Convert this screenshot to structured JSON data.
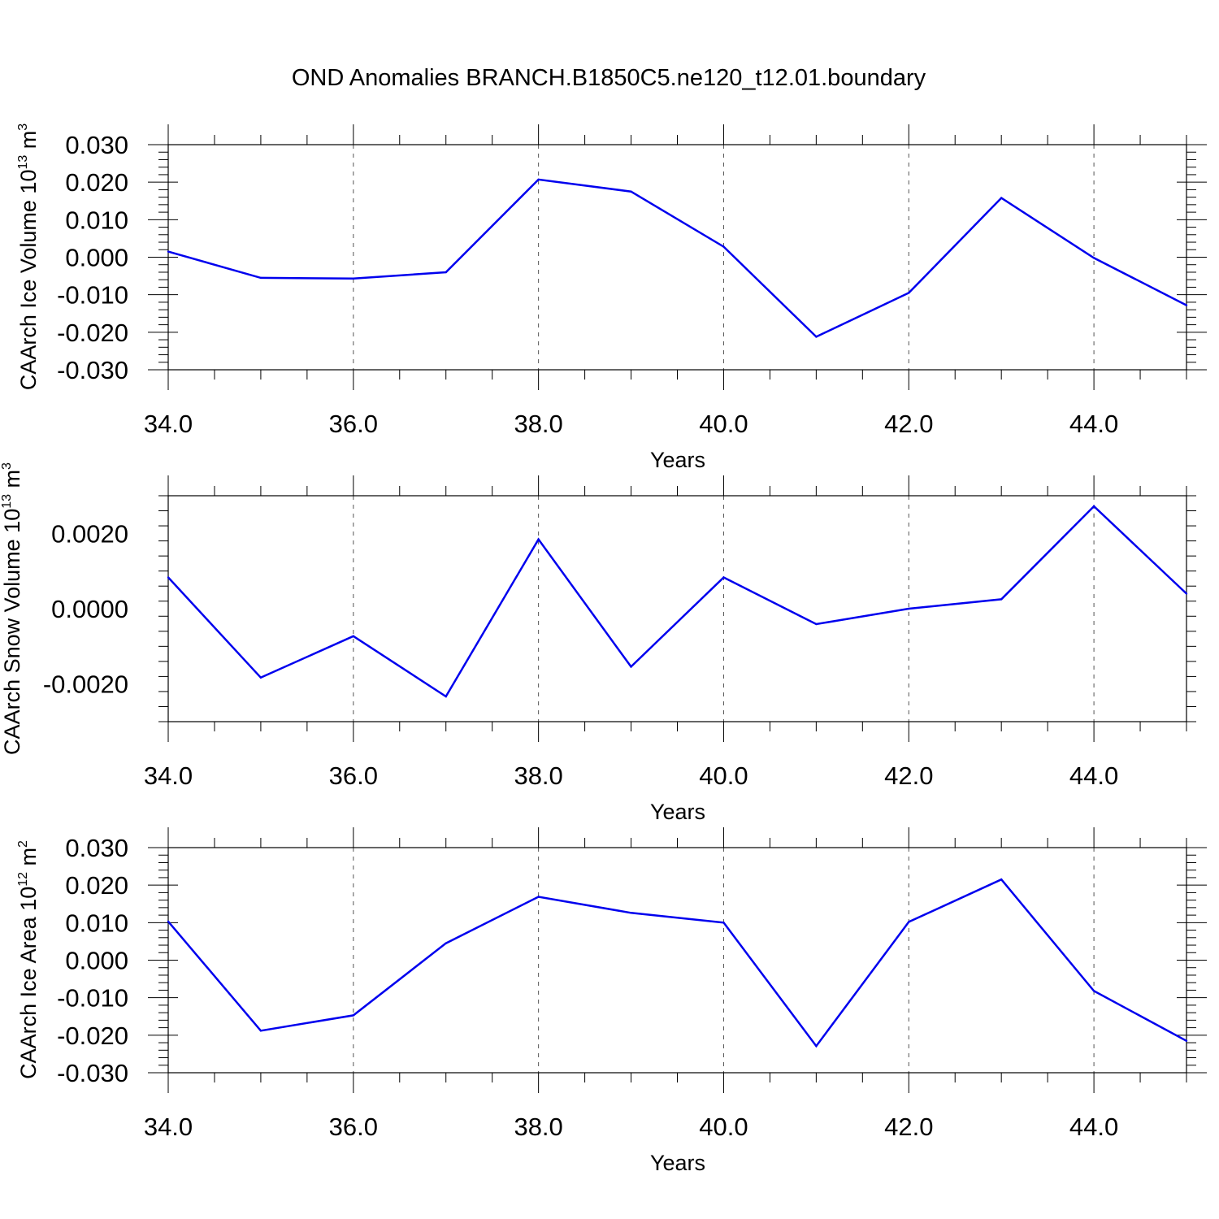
{
  "title": "OND Anomalies BRANCH.B1850C5.ne120_t12.01.boundary",
  "line_color": "#0000ee",
  "chart_data": [
    {
      "type": "line",
      "ylabel_main": "CAArch Ice Volume 10",
      "ylabel_exp": "13",
      "ylabel_unit": " m",
      "ylabel_unit_exp": "3",
      "xlabel": "Years",
      "xlim": [
        34,
        45
      ],
      "ylim": [
        -0.03,
        0.03
      ],
      "xticks": [
        34,
        36,
        38,
        40,
        42,
        44
      ],
      "xtick_labels": [
        "34.0",
        "36.0",
        "38.0",
        "40.0",
        "42.0",
        "44.0"
      ],
      "yticks": [
        0.03,
        0.02,
        0.01,
        0.0,
        -0.01,
        -0.02,
        -0.03
      ],
      "ytick_labels": [
        "0.030",
        "0.020",
        "0.010",
        "0.000",
        "-0.010",
        "-0.020",
        "-0.030"
      ],
      "grid": "vertical dashed at major x ticks",
      "x": [
        34,
        35,
        36,
        37,
        38,
        39,
        40,
        41,
        42,
        43,
        44,
        45
      ],
      "y": [
        0.0015,
        -0.0055,
        -0.0057,
        -0.004,
        0.0207,
        0.0175,
        0.0028,
        -0.0212,
        -0.0095,
        0.0158,
        -0.0002,
        -0.0128
      ]
    },
    {
      "type": "line",
      "ylabel_main": "CAArch Snow Volume 10",
      "ylabel_exp": "13",
      "ylabel_unit": " m",
      "ylabel_unit_exp": "3",
      "xlabel": "Years",
      "xlim": [
        34,
        45
      ],
      "ylim": [
        -0.003,
        0.003
      ],
      "xticks": [
        34,
        36,
        38,
        40,
        42,
        44
      ],
      "xtick_labels": [
        "34.0",
        "36.0",
        "38.0",
        "40.0",
        "42.0",
        "44.0"
      ],
      "yticks": [
        0.002,
        0.0,
        -0.002
      ],
      "ytick_labels": [
        "0.0020",
        "0.0000",
        "-0.0020"
      ],
      "grid": "vertical dashed at major x ticks",
      "x": [
        34,
        35,
        36,
        37,
        38,
        39,
        40,
        41,
        42,
        43,
        44,
        45
      ],
      "y": [
        0.00083,
        -0.00183,
        -0.00073,
        -0.00233,
        0.00184,
        -0.00154,
        0.00083,
        -0.00041,
        0.0,
        0.00025,
        0.00272,
        0.0004
      ]
    },
    {
      "type": "line",
      "ylabel_main": "CAArch Ice Area 10",
      "ylabel_exp": "12",
      "ylabel_unit": " m",
      "ylabel_unit_exp": "2",
      "xlabel": "Years",
      "xlim": [
        34,
        45
      ],
      "ylim": [
        -0.03,
        0.03
      ],
      "xticks": [
        34,
        36,
        38,
        40,
        42,
        44
      ],
      "xtick_labels": [
        "34.0",
        "36.0",
        "38.0",
        "40.0",
        "42.0",
        "44.0"
      ],
      "yticks": [
        0.03,
        0.02,
        0.01,
        0.0,
        -0.01,
        -0.02,
        -0.03
      ],
      "ytick_labels": [
        "0.030",
        "0.020",
        "0.010",
        "0.000",
        "-0.010",
        "-0.020",
        "-0.030"
      ],
      "grid": "vertical dashed at major x ticks",
      "x": [
        34,
        35,
        36,
        37,
        38,
        39,
        40,
        41,
        42,
        43,
        44,
        45
      ],
      "y": [
        0.0103,
        -0.0188,
        -0.0147,
        0.0045,
        0.0169,
        0.0126,
        0.01,
        -0.0229,
        0.0102,
        0.0215,
        -0.0082,
        -0.0215
      ]
    }
  ]
}
